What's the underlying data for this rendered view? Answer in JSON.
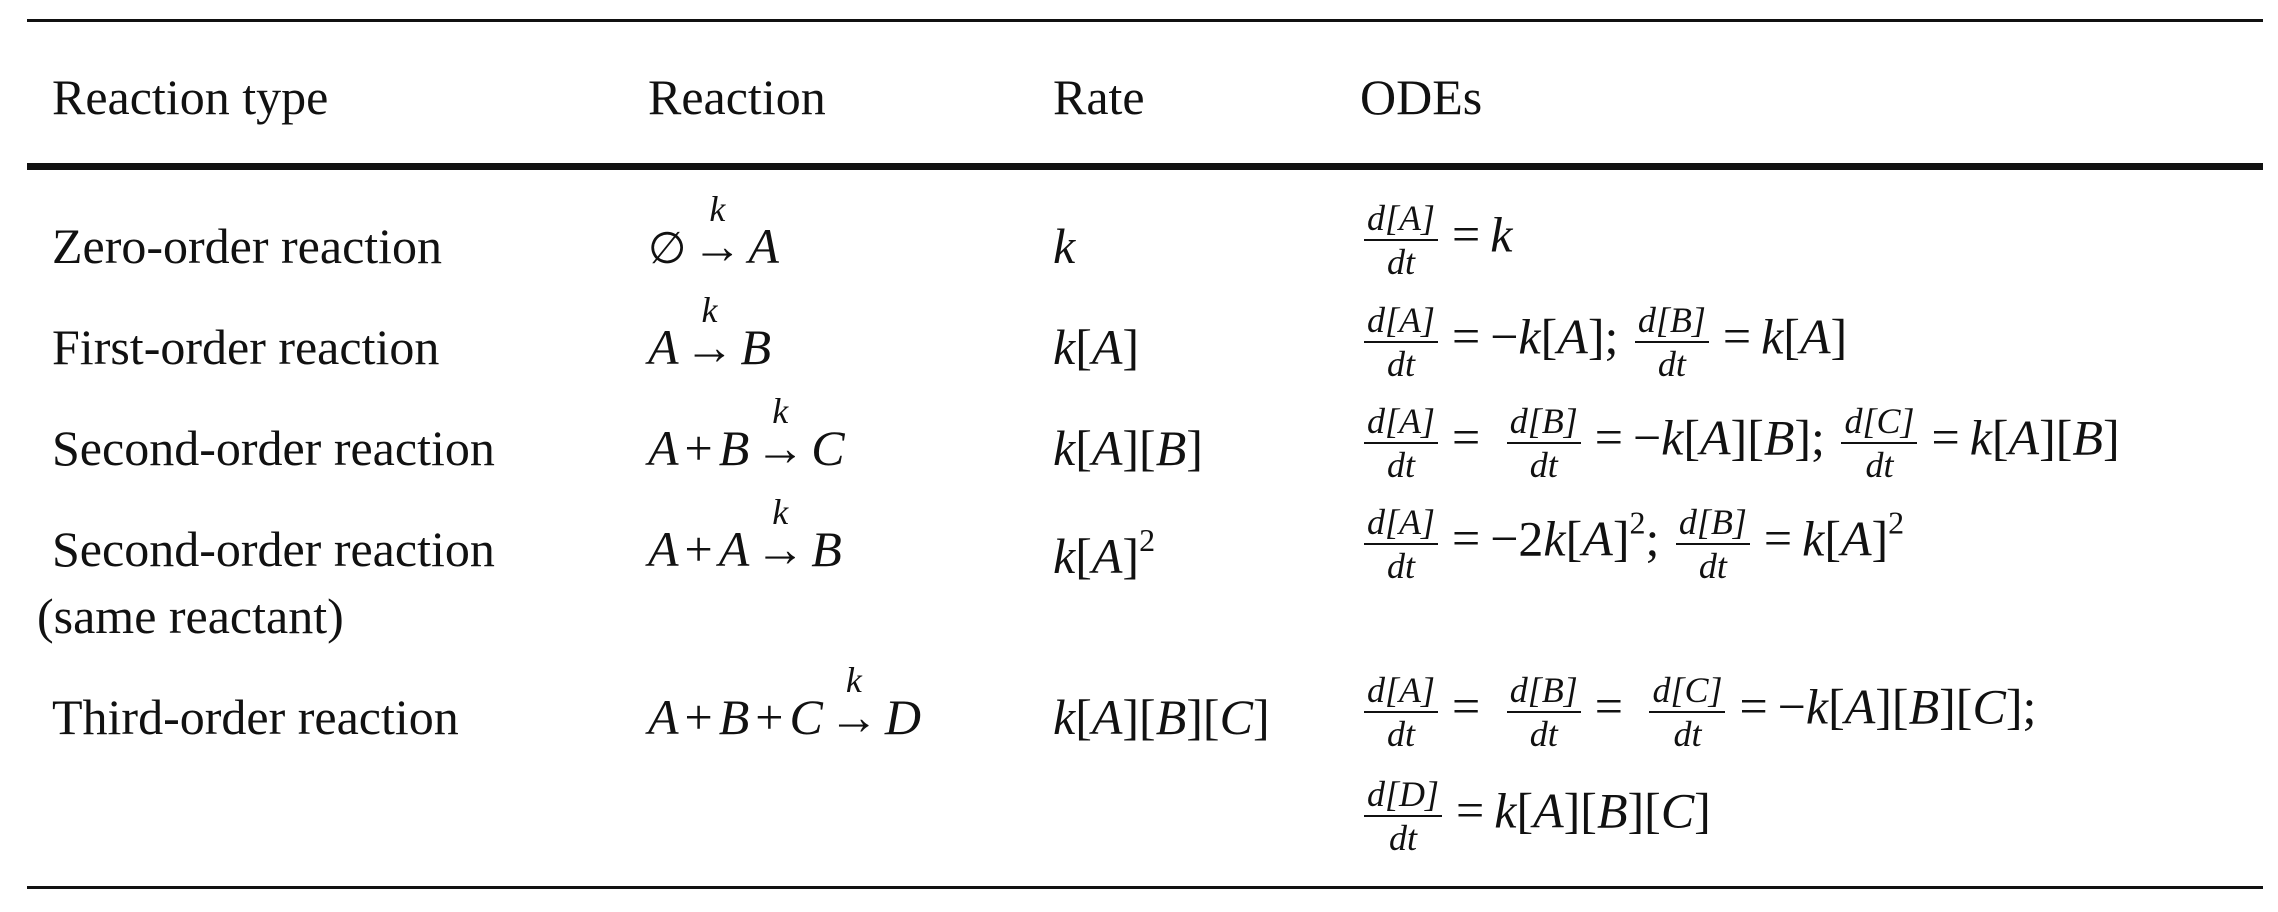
{
  "table": {
    "headers": {
      "type": "Reaction type",
      "reaction": "Reaction",
      "rate": "Rate",
      "odes": "ODEs"
    },
    "rows": [
      {
        "type": "Zero-order reaction",
        "type_line2": "",
        "reaction": "∅ →k A",
        "rate": "k",
        "odes": "d[A]/dt = k"
      },
      {
        "type": "First-order reaction",
        "type_line2": "",
        "reaction": "A →k B",
        "rate": "k[A]",
        "odes": "d[A]/dt = −k[A]; d[B]/dt = k[A]"
      },
      {
        "type": "Second-order reaction",
        "type_line2": "",
        "reaction": "A + B →k C",
        "rate": "k[A][B]",
        "odes": "d[A]/dt = d[B]/dt = −k[A][B]; d[C]/dt = k[A][B]"
      },
      {
        "type": "Second-order reaction",
        "type_line2": "(same reactant)",
        "reaction": "A + A →k B",
        "rate": "k[A]2",
        "odes": "d[A]/dt = −2k[A]2; d[B]/dt = k[A]2"
      },
      {
        "type": "Third-order reaction",
        "type_line2": "",
        "reaction": "A + B + C →k D",
        "rate": "k[A][B][C]",
        "odes": "d[A]/dt = d[B]/dt = d[C]/dt = −k[A][B][C]; d[D]/dt = k[A][B][C]"
      }
    ]
  }
}
